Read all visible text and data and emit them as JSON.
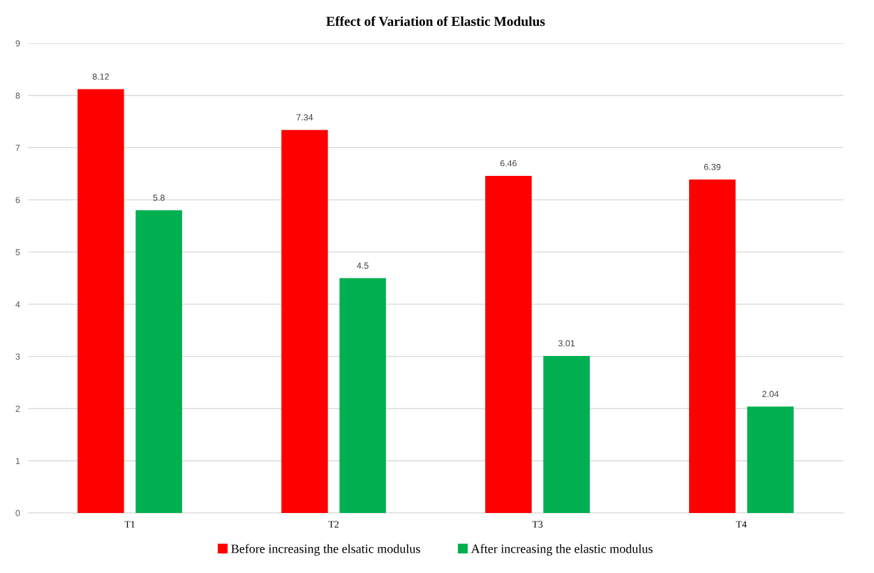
{
  "chart_data": {
    "type": "bar",
    "title": "Effect of Variation of Elastic Modulus",
    "categories": [
      "T1",
      "T2",
      "T3",
      "T4"
    ],
    "series": [
      {
        "name": "Before increasing the elsatic modulus",
        "color": "#ff0000",
        "values": [
          8.12,
          7.34,
          6.46,
          6.39
        ]
      },
      {
        "name": "After increasing the elastic modulus",
        "color": "#00b050",
        "values": [
          5.8,
          4.5,
          3.01,
          2.04
        ]
      }
    ],
    "ylim": [
      0,
      9
    ],
    "yticks": [
      0,
      1,
      2,
      3,
      4,
      5,
      6,
      7,
      8,
      9
    ],
    "grid": "y",
    "legend": "bottom",
    "data_labels": true
  }
}
